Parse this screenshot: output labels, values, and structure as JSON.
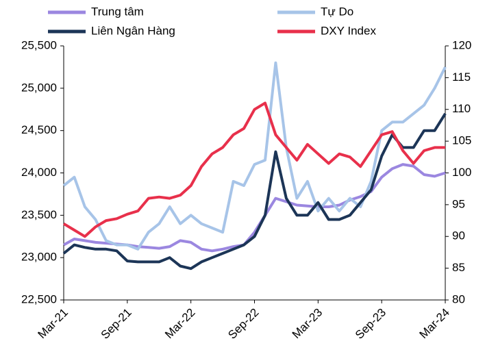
{
  "chart_data": {
    "type": "line",
    "categories": [
      "Mar-21",
      null,
      null,
      null,
      null,
      null,
      "Sep-21",
      null,
      null,
      null,
      null,
      null,
      "Mar-22",
      null,
      null,
      null,
      null,
      null,
      "Sep-22",
      null,
      null,
      null,
      null,
      null,
      "Mar-23",
      null,
      null,
      null,
      null,
      null,
      "Sep-23",
      null,
      null,
      null,
      null,
      null,
      "Mar-24"
    ],
    "series": [
      {
        "name": "Trung tâm",
        "color": "#9b87e0",
        "values": [
          23150,
          23220,
          23200,
          23180,
          23170,
          23160,
          23150,
          23130,
          23120,
          23110,
          23130,
          23200,
          23180,
          23100,
          23080,
          23100,
          23130,
          23150,
          23300,
          23500,
          23700,
          23660,
          23620,
          23610,
          23600,
          23600,
          23620,
          23680,
          23720,
          23780,
          23950,
          24050,
          24100,
          24080,
          23980,
          23960,
          24000
        ]
      },
      {
        "name": "Tự Do",
        "color": "#a7c4e8",
        "values": [
          23850,
          23950,
          23600,
          23450,
          23200,
          23150,
          23150,
          23100,
          23300,
          23400,
          23600,
          23400,
          23500,
          23400,
          23350,
          23300,
          23900,
          23850,
          24100,
          24150,
          25300,
          24300,
          23700,
          23900,
          23550,
          23700,
          23550,
          23700,
          23600,
          23900,
          24500,
          24600,
          24600,
          24700,
          24800,
          25000,
          25250
        ]
      },
      {
        "name": "Liên Ngân Hàng",
        "color": "#1c3557",
        "values": [
          23050,
          23150,
          23120,
          23100,
          23100,
          23080,
          22960,
          22950,
          22950,
          22950,
          23000,
          22900,
          22870,
          22950,
          23000,
          23050,
          23100,
          23150,
          23250,
          23500,
          24250,
          23700,
          23500,
          23500,
          23650,
          23450,
          23450,
          23500,
          23650,
          23800,
          24200,
          24450,
          24300,
          24300,
          24500,
          24500,
          24700
        ]
      },
      {
        "name": "DXY Index",
        "color": "#e8304b",
        "axis": "y2",
        "values": [
          92,
          91,
          90,
          91.5,
          92.5,
          92.8,
          93.5,
          94,
          96,
          96.2,
          96,
          96.5,
          98,
          101,
          103,
          104,
          106,
          107,
          110,
          111,
          106,
          104,
          102,
          104.5,
          103,
          101.5,
          103,
          102.5,
          101,
          103.5,
          106,
          106.5,
          103.5,
          101.5,
          103.5,
          104,
          104
        ]
      }
    ],
    "ylim": [
      22500,
      25500
    ],
    "yticks": [
      {
        "value": 22500,
        "label": "22,500"
      },
      {
        "value": 23000,
        "label": "23,000"
      },
      {
        "value": 23500,
        "label": "23,500"
      },
      {
        "value": 24000,
        "label": "24,000"
      },
      {
        "value": 24500,
        "label": "24,500"
      },
      {
        "value": 25000,
        "label": "25,000"
      },
      {
        "value": 25500,
        "label": "25,500"
      }
    ],
    "y2lim": [
      80,
      120
    ],
    "y2ticks": [
      80,
      85,
      90,
      95,
      100,
      105,
      110,
      115,
      120
    ],
    "grid": false
  }
}
